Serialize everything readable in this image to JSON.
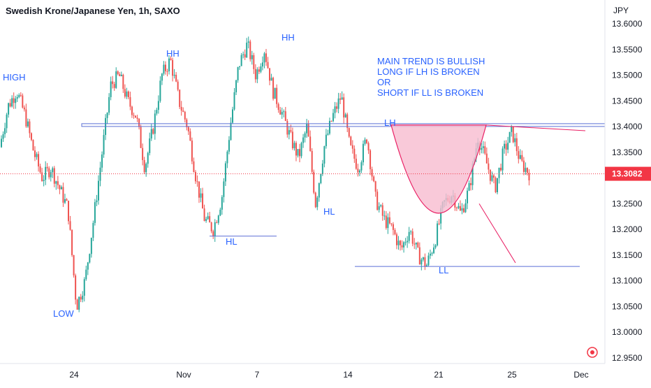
{
  "header": {
    "title": "Swedish Krone/Japanese Yen, 1h, SAXO"
  },
  "axis": {
    "currency": "JPY",
    "price_ticks": [
      "13.6000",
      "13.5500",
      "13.5000",
      "13.4500",
      "13.4000",
      "13.3500",
      "13.3000",
      "13.2500",
      "13.2000",
      "13.1500",
      "13.1000",
      "13.0500",
      "13.0000",
      "12.9500"
    ],
    "time_labels": [
      "24",
      "Nov",
      "7",
      "14",
      "21",
      "25",
      "Dec"
    ],
    "ylim": [
      12.92,
      13.63
    ]
  },
  "last_price": {
    "value": "13.3082",
    "color": "#f23645"
  },
  "colors": {
    "up": "#26a69a",
    "down": "#ef5350",
    "annotation_text": "#2962ff",
    "hline": "#5b6fd6",
    "fill": "#f8bbd0",
    "trendline": "#e91e63"
  },
  "annotations": {
    "high": "HIGH",
    "low": "LOW",
    "hh1": "HH",
    "hh2": "HH",
    "hl1": "HL",
    "hl2": "HL",
    "lh": "LH",
    "ll": "LL",
    "note_line1": "MAIN TREND IS BULLISH",
    "note_line2": "LONG IF LH IS BROKEN",
    "note_line3": "OR",
    "note_line4": "SHORT IF LL IS BROKEN"
  },
  "chart_data": {
    "type": "candlestick",
    "title": "Swedish Krone/Japanese Yen, 1h, SAXO",
    "ylabel": "JPY",
    "ylim": [
      12.92,
      13.63
    ],
    "x_tick_labels": [
      "24",
      "Nov",
      "7",
      "14",
      "21",
      "25",
      "Dec"
    ],
    "last_price": 13.3082,
    "price_path": [
      13.36,
      13.44,
      13.47,
      13.42,
      13.35,
      13.3,
      13.32,
      13.28,
      13.24,
      13.05,
      13.1,
      13.22,
      13.35,
      13.48,
      13.5,
      13.45,
      13.42,
      13.32,
      13.4,
      13.5,
      13.53,
      13.45,
      13.4,
      13.3,
      13.22,
      13.2,
      13.26,
      13.4,
      13.52,
      13.56,
      13.5,
      13.55,
      13.47,
      13.43,
      13.38,
      13.34,
      13.4,
      13.25,
      13.36,
      13.42,
      13.46,
      13.36,
      13.32,
      13.38,
      13.26,
      13.22,
      13.2,
      13.16,
      13.2,
      13.15,
      13.13,
      13.18,
      13.25,
      13.27,
      13.23,
      13.28,
      13.38,
      13.33,
      13.28,
      13.35,
      13.39,
      13.33,
      13.31
    ],
    "levels": {
      "lh_resistance": 13.403,
      "ll_support": 13.128,
      "hl_support": 13.187
    },
    "annotations": [
      "HIGH",
      "LOW",
      "HH",
      "HH",
      "HL",
      "HL",
      "LH",
      "LL",
      "MAIN TREND IS BULLISH",
      "LONG IF LH IS BROKEN",
      "OR",
      "SHORT IF LL IS BROKEN"
    ]
  }
}
